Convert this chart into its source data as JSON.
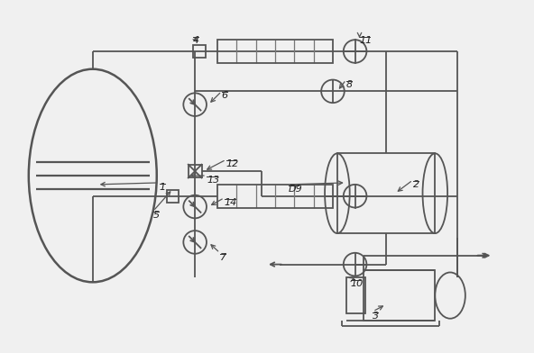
{
  "bg_color": "#f0f0f0",
  "line_color": "#555555",
  "lw": 1.3,
  "fig_w": 5.92,
  "fig_h": 3.92
}
